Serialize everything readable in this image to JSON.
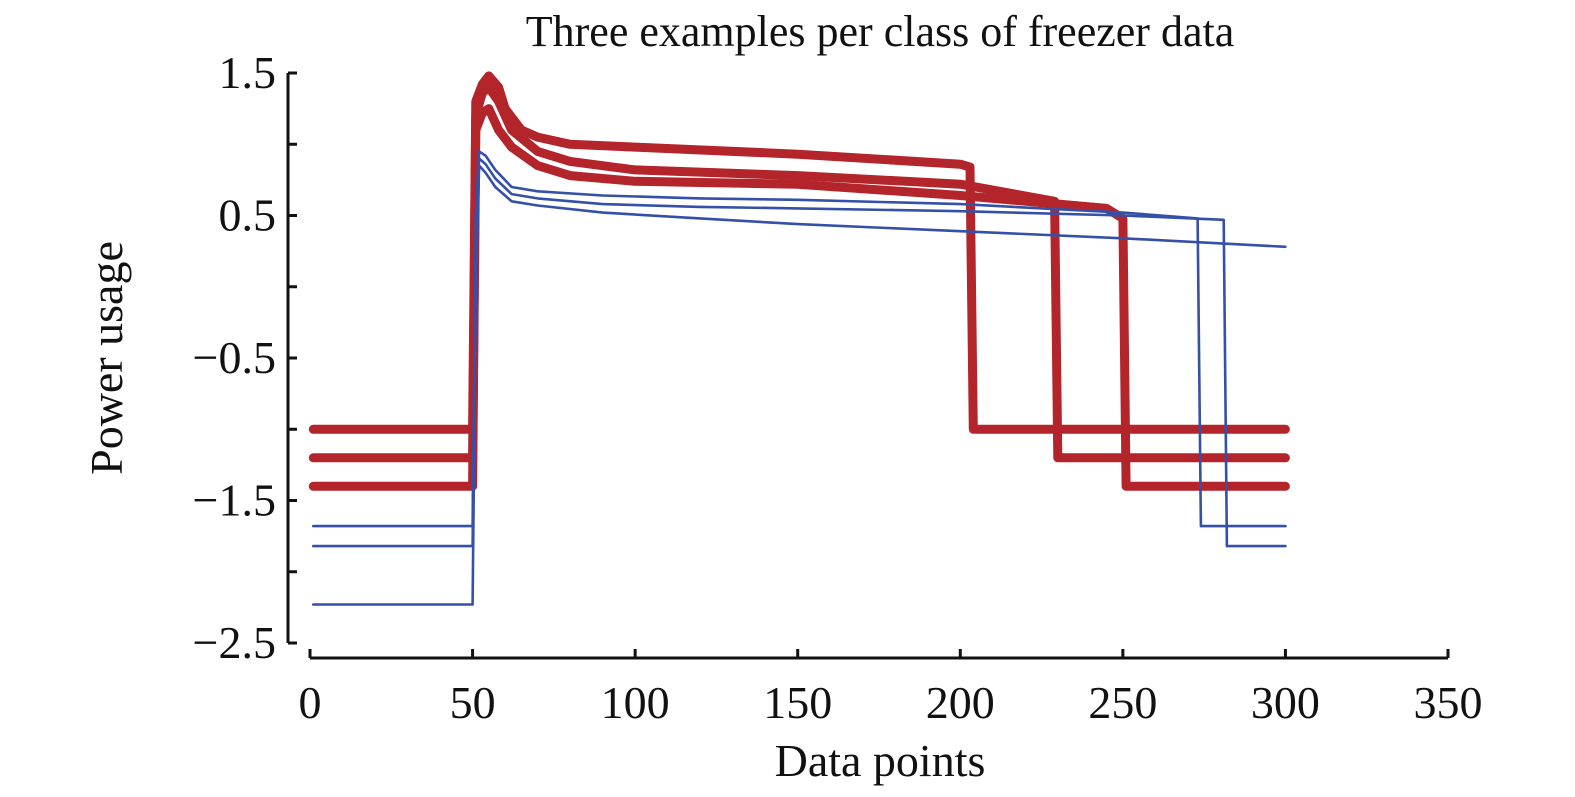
{
  "chart_data": {
    "type": "line",
    "title": "Three examples per class of freezer data",
    "xlabel": "Data points",
    "ylabel": "Power usage",
    "xlim": [
      0,
      350
    ],
    "ylim": [
      -2.5,
      1.5
    ],
    "xticks": [
      0,
      50,
      100,
      150,
      200,
      250,
      300,
      350
    ],
    "yticks": [
      1.5,
      1.0,
      0.5,
      0.0,
      -0.5,
      -1.0,
      -1.5,
      -2.0,
      -2.5
    ],
    "ytick_labels": [
      "1.5",
      "",
      "0.5",
      "",
      "−0.5",
      "",
      "−1.5",
      "",
      "−2.5"
    ],
    "grid": false,
    "legend": "none",
    "classes": {
      "class_1": {
        "color": "#b3242b"
      },
      "class_2": {
        "color": "#3550a8"
      }
    },
    "series": [
      {
        "class": "class_1",
        "x": [
          1,
          50,
          51,
          53,
          55,
          58,
          60,
          65,
          70,
          80,
          100,
          150,
          200,
          203,
          204,
          300
        ],
        "y": [
          -1.0,
          -1.0,
          1.3,
          1.42,
          1.48,
          1.4,
          1.25,
          1.1,
          1.05,
          1.0,
          0.98,
          0.93,
          0.86,
          0.84,
          -1.0,
          -1.0
        ]
      },
      {
        "class": "class_1",
        "x": [
          1,
          50,
          51,
          53,
          55,
          58,
          62,
          70,
          80,
          100,
          150,
          200,
          229,
          230,
          300
        ],
        "y": [
          -1.2,
          -1.2,
          1.2,
          1.36,
          1.4,
          1.3,
          1.1,
          0.95,
          0.88,
          0.82,
          0.78,
          0.72,
          0.6,
          -1.2,
          -1.2
        ]
      },
      {
        "class": "class_1",
        "x": [
          1,
          50,
          51,
          53,
          55,
          58,
          62,
          70,
          80,
          100,
          150,
          200,
          245,
          250,
          251,
          300
        ],
        "y": [
          -1.4,
          -1.4,
          1.1,
          1.22,
          1.25,
          1.1,
          0.98,
          0.85,
          0.78,
          0.74,
          0.72,
          0.64,
          0.55,
          0.48,
          -1.4,
          -1.4
        ]
      },
      {
        "class": "class_2",
        "x": [
          1,
          50,
          51,
          52,
          54,
          57,
          62,
          70,
          90,
          120,
          150,
          200,
          250,
          273,
          274,
          300
        ],
        "y": [
          -1.68,
          -1.68,
          0.5,
          0.95,
          0.92,
          0.82,
          0.7,
          0.67,
          0.64,
          0.62,
          0.61,
          0.58,
          0.52,
          0.48,
          -1.68,
          -1.68
        ]
      },
      {
        "class": "class_2",
        "x": [
          1,
          50,
          51,
          52,
          54,
          57,
          62,
          70,
          90,
          120,
          150,
          200,
          250,
          281,
          282,
          300
        ],
        "y": [
          -1.82,
          -1.82,
          0.3,
          0.9,
          0.86,
          0.76,
          0.65,
          0.62,
          0.58,
          0.56,
          0.55,
          0.53,
          0.5,
          0.47,
          -1.82,
          -1.82
        ]
      },
      {
        "class": "class_2",
        "x": [
          1,
          50,
          51,
          52,
          54,
          57,
          62,
          70,
          90,
          120,
          150,
          200,
          250,
          300
        ],
        "y": [
          -2.23,
          -2.23,
          0.0,
          0.85,
          0.8,
          0.7,
          0.6,
          0.57,
          0.52,
          0.48,
          0.44,
          0.39,
          0.34,
          0.28
        ]
      }
    ]
  }
}
